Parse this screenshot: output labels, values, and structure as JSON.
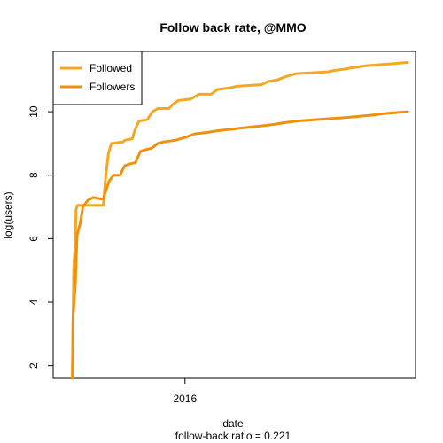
{
  "chart_data": {
    "type": "line",
    "title": "Follow back rate, @MMO",
    "xlabel": "date",
    "subtitle": "follow-back ratio = 0.221",
    "ylabel": "log(users)",
    "x_ticks": [
      {
        "value": "2016-01-01",
        "label": "2016"
      }
    ],
    "xlim": [
      "2014-11-01",
      "2018-01-15"
    ],
    "y_ticks": [
      2,
      4,
      6,
      8,
      10
    ],
    "ylim": [
      1.6,
      11.9
    ],
    "grid": false,
    "legend": {
      "position": "top-left"
    },
    "series": [
      {
        "name": "Followed",
        "color": "#f5a623",
        "points": [
          [
            "2015-01-02",
            1.6
          ],
          [
            "2015-01-06",
            5.0
          ],
          [
            "2015-01-11",
            5.8
          ],
          [
            "2015-01-14",
            6.9
          ],
          [
            "2015-01-18",
            7.05
          ],
          [
            "2015-02-05",
            7.05
          ],
          [
            "2015-03-10",
            7.05
          ],
          [
            "2015-04-12",
            7.05
          ],
          [
            "2015-04-20",
            8.0
          ],
          [
            "2015-04-29",
            8.7
          ],
          [
            "2015-05-08",
            9.0
          ],
          [
            "2015-06-15",
            9.05
          ],
          [
            "2015-06-20",
            9.1
          ],
          [
            "2015-07-15",
            9.15
          ],
          [
            "2015-07-22",
            9.4
          ],
          [
            "2015-08-05",
            9.7
          ],
          [
            "2015-09-01",
            9.75
          ],
          [
            "2015-09-18",
            10.0
          ],
          [
            "2015-10-05",
            10.1
          ],
          [
            "2015-11-10",
            10.1
          ],
          [
            "2015-11-25",
            10.25
          ],
          [
            "2015-12-10",
            10.35
          ],
          [
            "2016-01-20",
            10.4
          ],
          [
            "2016-02-15",
            10.55
          ],
          [
            "2016-03-25",
            10.55
          ],
          [
            "2016-04-15",
            10.7
          ],
          [
            "2016-05-25",
            10.75
          ],
          [
            "2016-06-15",
            10.8
          ],
          [
            "2016-09-05",
            10.85
          ],
          [
            "2016-09-25",
            10.95
          ],
          [
            "2016-10-25",
            11.0
          ],
          [
            "2016-11-20",
            11.1
          ],
          [
            "2016-12-25",
            11.2
          ],
          [
            "2017-04-01",
            11.25
          ],
          [
            "2017-04-30",
            11.3
          ],
          [
            "2017-06-05",
            11.35
          ],
          [
            "2017-07-05",
            11.4
          ],
          [
            "2017-08-10",
            11.45
          ],
          [
            "2017-10-20",
            11.5
          ],
          [
            "2017-12-20",
            11.55
          ]
        ]
      },
      {
        "name": "Followers",
        "color": "#f0900f",
        "points": [
          [
            "2015-01-02",
            1.6
          ],
          [
            "2015-01-04",
            3.5
          ],
          [
            "2015-01-12",
            4.6
          ],
          [
            "2015-01-17",
            6.1
          ],
          [
            "2015-01-28",
            6.5
          ],
          [
            "2015-02-05",
            7.0
          ],
          [
            "2015-02-20",
            7.2
          ],
          [
            "2015-03-10",
            7.3
          ],
          [
            "2015-04-05",
            7.25
          ],
          [
            "2015-04-12",
            7.25
          ],
          [
            "2015-04-30",
            7.8
          ],
          [
            "2015-05-15",
            8.0
          ],
          [
            "2015-06-05",
            8.0
          ],
          [
            "2015-06-20",
            8.3
          ],
          [
            "2015-07-05",
            8.35
          ],
          [
            "2015-07-25",
            8.4
          ],
          [
            "2015-08-10",
            8.75
          ],
          [
            "2015-08-25",
            8.8
          ],
          [
            "2015-09-15",
            8.85
          ],
          [
            "2015-10-05",
            9.0
          ],
          [
            "2015-10-25",
            9.05
          ],
          [
            "2015-12-01",
            9.1
          ],
          [
            "2016-01-05",
            9.2
          ],
          [
            "2016-02-01",
            9.3
          ],
          [
            "2016-03-15",
            9.35
          ],
          [
            "2016-04-15",
            9.4
          ],
          [
            "2016-06-01",
            9.45
          ],
          [
            "2016-07-15",
            9.5
          ],
          [
            "2016-09-01",
            9.55
          ],
          [
            "2016-10-15",
            9.6
          ],
          [
            "2016-11-15",
            9.65
          ],
          [
            "2016-12-25",
            9.7
          ],
          [
            "2017-03-01",
            9.75
          ],
          [
            "2017-05-15",
            9.8
          ],
          [
            "2017-07-15",
            9.85
          ],
          [
            "2017-09-01",
            9.9
          ],
          [
            "2017-10-15",
            9.95
          ],
          [
            "2017-12-20",
            10.0
          ]
        ]
      }
    ]
  }
}
